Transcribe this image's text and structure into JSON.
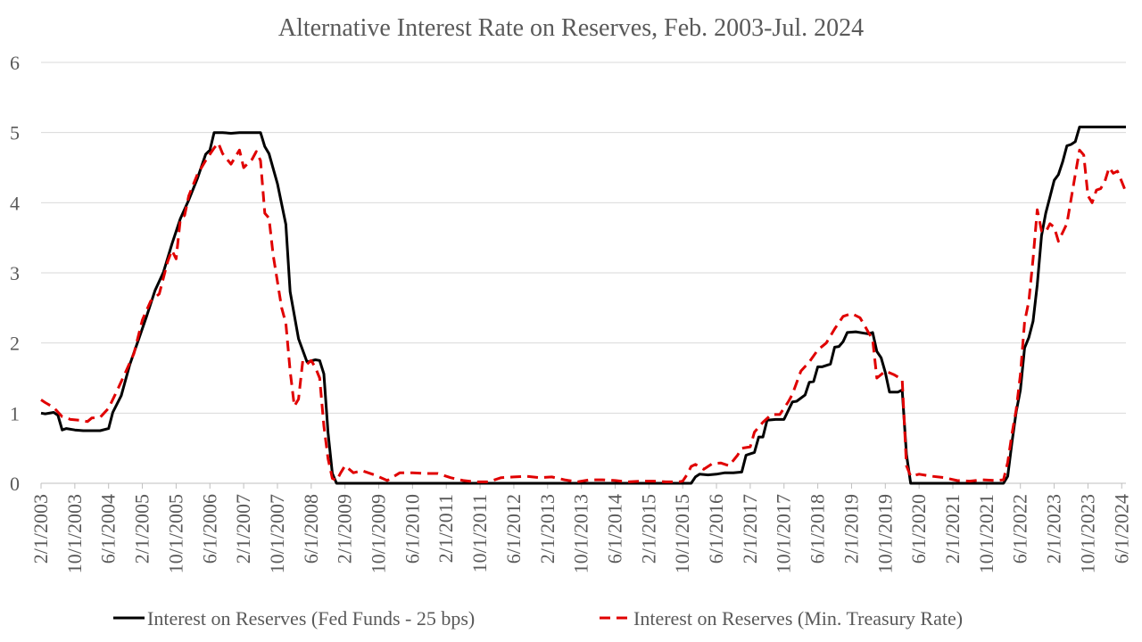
{
  "chart_data": {
    "type": "line",
    "title": "Alternative Interest Rate on Reserves, Feb. 2003-Jul. 2024",
    "xlabel": "",
    "ylabel": "",
    "ylim": [
      0,
      6
    ],
    "yticks": [
      0,
      1,
      2,
      3,
      4,
      5,
      6
    ],
    "xlim": [
      "2003-02",
      "2024-07"
    ],
    "xticks": [
      "2/1/2003",
      "10/1/2003",
      "6/1/2004",
      "2/1/2005",
      "10/1/2005",
      "6/1/2006",
      "2/1/2007",
      "10/1/2007",
      "6/1/2008",
      "2/1/2009",
      "10/1/2009",
      "6/1/2010",
      "2/1/2011",
      "10/1/2011",
      "6/1/2012",
      "2/1/2013",
      "10/1/2013",
      "6/1/2014",
      "2/1/2015",
      "10/1/2015",
      "6/1/2016",
      "2/1/2017",
      "10/1/2017",
      "6/1/2018",
      "2/1/2019",
      "10/1/2019",
      "6/1/2020",
      "2/1/2021",
      "10/1/2021",
      "6/1/2022",
      "2/1/2023",
      "10/1/2023",
      "6/1/2024"
    ],
    "grid": "horizontal",
    "legend_position": "bottom",
    "series": [
      {
        "name": "Interest on Reserves (Fed Funds - 25 bps)",
        "color": "#000000",
        "style": "solid",
        "points": [
          [
            "2003-02",
            1.0
          ],
          [
            "2003-03",
            0.99
          ],
          [
            "2003-05",
            1.01
          ],
          [
            "2003-06",
            0.97
          ],
          [
            "2003-07",
            0.76
          ],
          [
            "2003-08",
            0.78
          ],
          [
            "2003-10",
            0.76
          ],
          [
            "2003-12",
            0.75
          ],
          [
            "2004-02",
            0.75
          ],
          [
            "2004-04",
            0.75
          ],
          [
            "2004-06",
            0.78
          ],
          [
            "2004-07",
            1.01
          ],
          [
            "2004-09",
            1.25
          ],
          [
            "2004-11",
            1.69
          ],
          [
            "2005-01",
            2.03
          ],
          [
            "2005-03",
            2.38
          ],
          [
            "2005-05",
            2.75
          ],
          [
            "2005-07",
            3.01
          ],
          [
            "2005-09",
            3.41
          ],
          [
            "2005-11",
            3.77
          ],
          [
            "2006-01",
            4.04
          ],
          [
            "2006-03",
            4.34
          ],
          [
            "2006-05",
            4.69
          ],
          [
            "2006-06",
            4.75
          ],
          [
            "2006-07",
            5.0
          ],
          [
            "2006-09",
            5.0
          ],
          [
            "2006-11",
            4.99
          ],
          [
            "2007-01",
            5.0
          ],
          [
            "2007-03",
            5.0
          ],
          [
            "2007-05",
            5.0
          ],
          [
            "2007-06",
            5.0
          ],
          [
            "2007-07",
            4.8
          ],
          [
            "2007-08",
            4.7
          ],
          [
            "2007-10",
            4.27
          ],
          [
            "2007-12",
            3.69
          ],
          [
            "2008-01",
            2.73
          ],
          [
            "2008-03",
            2.06
          ],
          [
            "2008-05",
            1.73
          ],
          [
            "2008-07",
            1.76
          ],
          [
            "2008-08",
            1.75
          ],
          [
            "2008-09",
            1.56
          ],
          [
            "2008-10",
            0.72
          ],
          [
            "2008-11",
            0.14
          ],
          [
            "2008-12",
            0.0
          ],
          [
            "2009-06",
            0.0
          ],
          [
            "2010-06",
            0.0
          ],
          [
            "2011-06",
            0.0
          ],
          [
            "2012-06",
            0.0
          ],
          [
            "2013-06",
            0.0
          ],
          [
            "2014-06",
            0.0
          ],
          [
            "2015-06",
            0.0
          ],
          [
            "2015-12",
            0.0
          ],
          [
            "2016-01",
            0.09
          ],
          [
            "2016-02",
            0.13
          ],
          [
            "2016-04",
            0.12
          ],
          [
            "2016-06",
            0.13
          ],
          [
            "2016-08",
            0.15
          ],
          [
            "2016-10",
            0.15
          ],
          [
            "2016-12",
            0.16
          ],
          [
            "2017-01",
            0.4
          ],
          [
            "2017-03",
            0.44
          ],
          [
            "2017-04",
            0.66
          ],
          [
            "2017-05",
            0.66
          ],
          [
            "2017-06",
            0.9
          ],
          [
            "2017-08",
            0.91
          ],
          [
            "2017-10",
            0.91
          ],
          [
            "2017-12",
            1.16
          ],
          [
            "2018-01",
            1.17
          ],
          [
            "2018-03",
            1.26
          ],
          [
            "2018-04",
            1.44
          ],
          [
            "2018-05",
            1.45
          ],
          [
            "2018-06",
            1.66
          ],
          [
            "2018-07",
            1.66
          ],
          [
            "2018-09",
            1.7
          ],
          [
            "2018-10",
            1.94
          ],
          [
            "2018-11",
            1.95
          ],
          [
            "2018-12",
            2.02
          ],
          [
            "2019-01",
            2.15
          ],
          [
            "2019-03",
            2.16
          ],
          [
            "2019-05",
            2.14
          ],
          [
            "2019-06",
            2.13
          ],
          [
            "2019-07",
            2.15
          ],
          [
            "2019-08",
            1.88
          ],
          [
            "2019-09",
            1.79
          ],
          [
            "2019-10",
            1.58
          ],
          [
            "2019-11",
            1.3
          ],
          [
            "2019-12",
            1.3
          ],
          [
            "2020-01",
            1.3
          ],
          [
            "2020-02",
            1.33
          ],
          [
            "2020-03",
            0.41
          ],
          [
            "2020-04",
            0.0
          ],
          [
            "2020-06",
            0.0
          ],
          [
            "2021-06",
            0.0
          ],
          [
            "2022-01",
            0.0
          ],
          [
            "2022-02",
            0.0
          ],
          [
            "2022-03",
            0.1
          ],
          [
            "2022-04",
            0.58
          ],
          [
            "2022-05",
            1.02
          ],
          [
            "2022-06",
            1.33
          ],
          [
            "2022-07",
            1.93
          ],
          [
            "2022-08",
            2.08
          ],
          [
            "2022-09",
            2.31
          ],
          [
            "2022-10",
            2.83
          ],
          [
            "2022-11",
            3.53
          ],
          [
            "2022-12",
            3.85
          ],
          [
            "2023-01",
            4.08
          ],
          [
            "2023-02",
            4.32
          ],
          [
            "2023-03",
            4.4
          ],
          [
            "2023-04",
            4.58
          ],
          [
            "2023-05",
            4.81
          ],
          [
            "2023-06",
            4.83
          ],
          [
            "2023-07",
            4.87
          ],
          [
            "2023-08",
            5.08
          ],
          [
            "2023-10",
            5.08
          ],
          [
            "2023-12",
            5.08
          ],
          [
            "2024-02",
            5.08
          ],
          [
            "2024-04",
            5.08
          ],
          [
            "2024-06",
            5.08
          ],
          [
            "2024-07",
            5.08
          ]
        ]
      },
      {
        "name": "Interest on Reserves (Min. Treasury Rate)",
        "color": "#e00000",
        "style": "dashed",
        "points": [
          [
            "2003-02",
            1.19
          ],
          [
            "2003-03",
            1.15
          ],
          [
            "2003-05",
            1.08
          ],
          [
            "2003-07",
            0.95
          ],
          [
            "2003-09",
            0.91
          ],
          [
            "2003-11",
            0.9
          ],
          [
            "2004-01",
            0.88
          ],
          [
            "2004-02",
            0.93
          ],
          [
            "2004-04",
            0.94
          ],
          [
            "2004-06",
            1.07
          ],
          [
            "2004-08",
            1.32
          ],
          [
            "2004-10",
            1.58
          ],
          [
            "2004-12",
            1.85
          ],
          [
            "2005-02",
            2.33
          ],
          [
            "2005-04",
            2.6
          ],
          [
            "2005-06",
            2.7
          ],
          [
            "2005-08",
            3.16
          ],
          [
            "2005-09",
            3.32
          ],
          [
            "2005-10",
            3.2
          ],
          [
            "2005-11",
            3.76
          ],
          [
            "2005-12",
            3.82
          ],
          [
            "2006-01",
            4.1
          ],
          [
            "2006-03",
            4.4
          ],
          [
            "2006-05",
            4.6
          ],
          [
            "2006-07",
            4.78
          ],
          [
            "2006-08",
            4.85
          ],
          [
            "2006-09",
            4.7
          ],
          [
            "2006-11",
            4.55
          ],
          [
            "2007-01",
            4.75
          ],
          [
            "2007-02",
            4.5
          ],
          [
            "2007-04",
            4.62
          ],
          [
            "2007-05",
            4.73
          ],
          [
            "2007-06",
            4.6
          ],
          [
            "2007-07",
            3.85
          ],
          [
            "2007-08",
            3.78
          ],
          [
            "2007-09",
            3.25
          ],
          [
            "2007-11",
            2.5
          ],
          [
            "2007-12",
            2.28
          ],
          [
            "2008-01",
            1.6
          ],
          [
            "2008-02",
            1.1
          ],
          [
            "2008-03",
            1.2
          ],
          [
            "2008-04",
            1.75
          ],
          [
            "2008-05",
            1.7
          ],
          [
            "2008-06",
            1.75
          ],
          [
            "2008-07",
            1.65
          ],
          [
            "2008-08",
            1.5
          ],
          [
            "2008-09",
            0.82
          ],
          [
            "2008-10",
            0.35
          ],
          [
            "2008-11",
            0.07
          ],
          [
            "2008-12",
            0.04
          ],
          [
            "2009-01",
            0.15
          ],
          [
            "2009-02",
            0.25
          ],
          [
            "2009-04",
            0.15
          ],
          [
            "2009-06",
            0.18
          ],
          [
            "2009-09",
            0.12
          ],
          [
            "2009-12",
            0.04
          ],
          [
            "2010-03",
            0.15
          ],
          [
            "2010-06",
            0.15
          ],
          [
            "2010-09",
            0.14
          ],
          [
            "2010-12",
            0.14
          ],
          [
            "2011-03",
            0.08
          ],
          [
            "2011-06",
            0.04
          ],
          [
            "2011-09",
            0.02
          ],
          [
            "2011-12",
            0.02
          ],
          [
            "2012-03",
            0.08
          ],
          [
            "2012-06",
            0.09
          ],
          [
            "2012-09",
            0.1
          ],
          [
            "2012-12",
            0.08
          ],
          [
            "2013-03",
            0.09
          ],
          [
            "2013-06",
            0.05
          ],
          [
            "2013-09",
            0.02
          ],
          [
            "2013-12",
            0.05
          ],
          [
            "2014-03",
            0.05
          ],
          [
            "2014-06",
            0.04
          ],
          [
            "2014-09",
            0.02
          ],
          [
            "2014-12",
            0.03
          ],
          [
            "2015-03",
            0.03
          ],
          [
            "2015-06",
            0.02
          ],
          [
            "2015-09",
            0.02
          ],
          [
            "2015-10",
            0.03
          ],
          [
            "2015-11",
            0.12
          ],
          [
            "2015-12",
            0.24
          ],
          [
            "2016-01",
            0.27
          ],
          [
            "2016-03",
            0.2
          ],
          [
            "2016-05",
            0.28
          ],
          [
            "2016-07",
            0.29
          ],
          [
            "2016-09",
            0.25
          ],
          [
            "2016-11",
            0.4
          ],
          [
            "2016-12",
            0.5
          ],
          [
            "2017-02",
            0.52
          ],
          [
            "2017-03",
            0.73
          ],
          [
            "2017-05",
            0.87
          ],
          [
            "2017-07",
            0.98
          ],
          [
            "2017-09",
            0.98
          ],
          [
            "2017-11",
            1.16
          ],
          [
            "2017-12",
            1.27
          ],
          [
            "2018-02",
            1.6
          ],
          [
            "2018-04",
            1.73
          ],
          [
            "2018-06",
            1.9
          ],
          [
            "2018-08",
            2.0
          ],
          [
            "2018-10",
            2.2
          ],
          [
            "2018-12",
            2.38
          ],
          [
            "2019-02",
            2.42
          ],
          [
            "2019-04",
            2.36
          ],
          [
            "2019-05",
            2.26
          ],
          [
            "2019-06",
            2.15
          ],
          [
            "2019-07",
            2.05
          ],
          [
            "2019-08",
            1.5
          ],
          [
            "2019-09",
            1.55
          ],
          [
            "2019-10",
            1.6
          ],
          [
            "2019-12",
            1.55
          ],
          [
            "2020-02",
            1.48
          ],
          [
            "2020-03",
            0.25
          ],
          [
            "2020-04",
            0.1
          ],
          [
            "2020-06",
            0.13
          ],
          [
            "2020-09",
            0.1
          ],
          [
            "2020-12",
            0.08
          ],
          [
            "2021-03",
            0.04
          ],
          [
            "2021-06",
            0.03
          ],
          [
            "2021-09",
            0.05
          ],
          [
            "2021-12",
            0.04
          ],
          [
            "2022-02",
            0.05
          ],
          [
            "2022-03",
            0.3
          ],
          [
            "2022-04",
            0.7
          ],
          [
            "2022-05",
            1.05
          ],
          [
            "2022-06",
            1.55
          ],
          [
            "2022-07",
            2.3
          ],
          [
            "2022-08",
            2.6
          ],
          [
            "2022-09",
            3.2
          ],
          [
            "2022-10",
            3.9
          ],
          [
            "2022-11",
            3.6
          ],
          [
            "2022-12",
            3.58
          ],
          [
            "2023-01",
            3.7
          ],
          [
            "2023-02",
            3.65
          ],
          [
            "2023-03",
            3.45
          ],
          [
            "2023-05",
            3.7
          ],
          [
            "2023-06",
            4.05
          ],
          [
            "2023-07",
            4.4
          ],
          [
            "2023-08",
            4.75
          ],
          [
            "2023-09",
            4.68
          ],
          [
            "2023-10",
            4.1
          ],
          [
            "2023-11",
            4.0
          ],
          [
            "2023-12",
            4.18
          ],
          [
            "2024-01",
            4.2
          ],
          [
            "2024-02",
            4.3
          ],
          [
            "2024-03",
            4.5
          ],
          [
            "2024-04",
            4.42
          ],
          [
            "2024-05",
            4.45
          ],
          [
            "2024-06",
            4.3
          ],
          [
            "2024-07",
            4.15
          ]
        ]
      }
    ]
  }
}
